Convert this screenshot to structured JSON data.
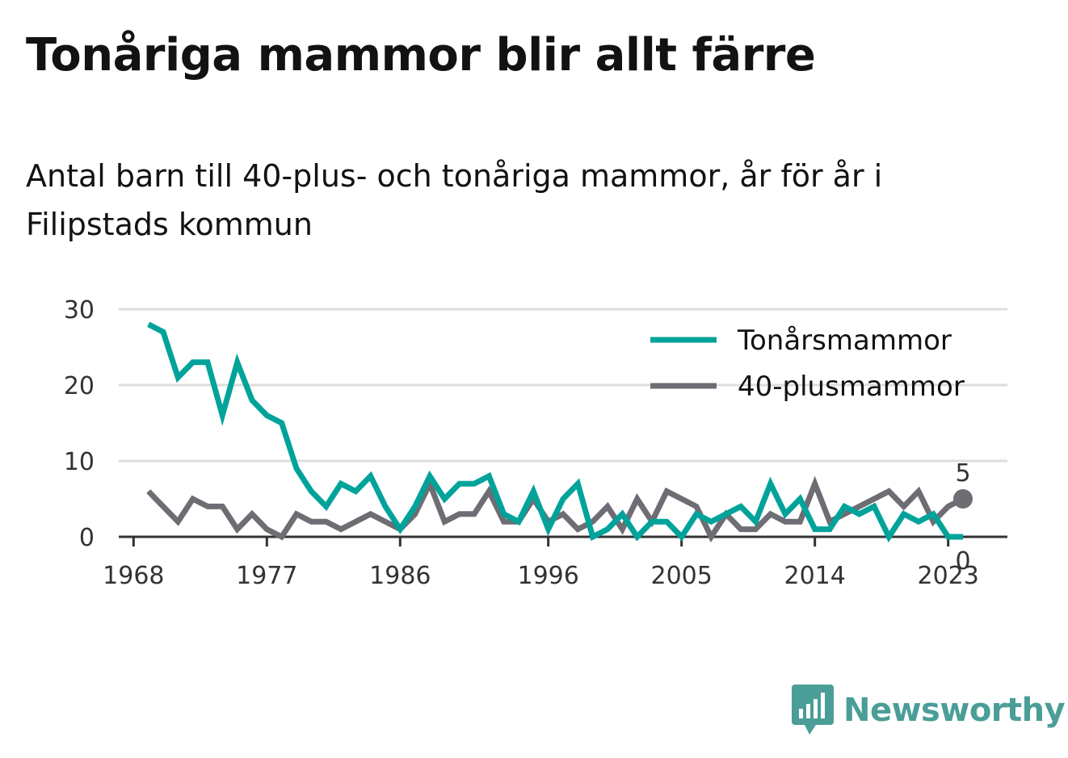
{
  "title": "Tonåriga mammor blir allt färre",
  "subtitle": "Antal barn till 40-plus- och tonåriga mammor, år för år i Filipstads kommun",
  "logo": {
    "text": "Newsworthy",
    "icon": "bar-chart-speech-icon"
  },
  "colors": {
    "teen": "#00a39a",
    "forty": "#6e6d73",
    "grid": "#dddddd",
    "axis": "#333333"
  },
  "chart_data": {
    "type": "line",
    "x_ticks": [
      1968,
      1977,
      1986,
      1996,
      2005,
      2014,
      2023
    ],
    "y_ticks": [
      0,
      10,
      20,
      30
    ],
    "xlim": [
      1967,
      2027
    ],
    "ylim": [
      0,
      30
    ],
    "grid": true,
    "legend_position": "top-right",
    "x": [
      1969,
      1970,
      1971,
      1972,
      1973,
      1974,
      1975,
      1976,
      1977,
      1978,
      1979,
      1980,
      1981,
      1982,
      1983,
      1984,
      1985,
      1986,
      1987,
      1988,
      1989,
      1990,
      1991,
      1992,
      1993,
      1994,
      1995,
      1996,
      1997,
      1998,
      1999,
      2000,
      2001,
      2002,
      2003,
      2004,
      2005,
      2006,
      2007,
      2008,
      2009,
      2010,
      2011,
      2012,
      2013,
      2014,
      2015,
      2016,
      2017,
      2018,
      2019,
      2020,
      2021,
      2022,
      2023,
      2024
    ],
    "series": [
      {
        "name": "Tonårsmammor",
        "color": "#00a39a",
        "values": [
          28,
          27,
          21,
          23,
          23,
          16,
          23,
          18,
          16,
          15,
          9,
          6,
          4,
          7,
          6,
          8,
          4,
          1,
          4,
          8,
          5,
          7,
          7,
          8,
          3,
          2,
          6,
          1,
          5,
          7,
          0,
          1,
          3,
          0,
          2,
          2,
          0,
          3,
          2,
          3,
          4,
          2,
          7,
          3,
          5,
          1,
          1,
          4,
          3,
          4,
          0,
          3,
          2,
          3,
          0,
          0
        ],
        "end_label": "0"
      },
      {
        "name": "40-plusmammor",
        "color": "#6e6d73",
        "values": [
          6,
          4,
          2,
          5,
          4,
          4,
          1,
          3,
          1,
          0,
          3,
          2,
          2,
          1,
          2,
          3,
          2,
          1,
          3,
          7,
          2,
          3,
          3,
          6,
          2,
          2,
          5,
          2,
          3,
          1,
          2,
          4,
          1,
          5,
          2,
          6,
          5,
          4,
          0,
          3,
          1,
          1,
          3,
          2,
          2,
          7,
          2,
          3,
          4,
          5,
          6,
          4,
          6,
          2,
          4,
          5
        ],
        "end_label": "5"
      }
    ]
  }
}
